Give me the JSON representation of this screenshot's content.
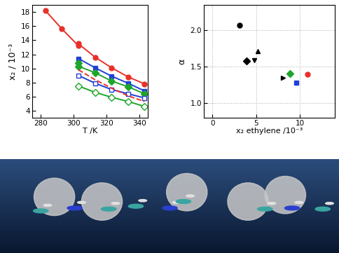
{
  "chart_data": [
    {
      "type": "line",
      "x_label": "T /K",
      "y_label": "x₂ / 10⁻³",
      "xlim": [
        275,
        345
      ],
      "xticks": [
        280,
        300,
        320,
        340
      ],
      "ylim": [
        3,
        19
      ],
      "yticks": [
        4,
        6,
        8,
        10,
        12,
        14,
        16,
        18
      ],
      "grid": false,
      "series": [
        {
          "color": "#e8312a",
          "marker": "circle",
          "line_style": "solid",
          "x": [
            283,
            293,
            303,
            303,
            313,
            323,
            333,
            343
          ],
          "values": [
            18.2,
            15.6,
            13.2,
            13.5,
            11.6,
            10.1,
            8.8,
            7.8
          ]
        },
        {
          "color": "#1f3fd6",
          "marker": "square",
          "line_style": "solid",
          "x": [
            303,
            313,
            323,
            333,
            343
          ],
          "values": [
            11.4,
            10.1,
            8.9,
            7.9,
            6.8
          ]
        },
        {
          "color": "#1fa52a",
          "marker": "diamond",
          "line_style": "solid",
          "x": [
            303,
            303,
            313,
            323,
            333,
            343
          ],
          "values": [
            10.8,
            10.3,
            9.4,
            8.2,
            7.4,
            6.4
          ]
        },
        {
          "color": "#1f3fd6",
          "marker": "open square",
          "line_style": "solid",
          "x": [
            303,
            313,
            323,
            333,
            343
          ],
          "values": [
            9.0,
            7.9,
            7.0,
            6.4,
            5.8
          ]
        },
        {
          "color": "#e8312a",
          "marker": "none",
          "line_style": "dashed",
          "x": [
            303,
            313,
            323,
            333,
            343
          ],
          "values": [
            9.8,
            8.4,
            7.2,
            6.1,
            5.3
          ]
        },
        {
          "color": "#1fa52a",
          "marker": "open diamond",
          "line_style": "solid",
          "x": [
            303,
            313,
            323,
            333,
            343
          ],
          "values": [
            7.5,
            6.6,
            5.9,
            5.3,
            4.6
          ]
        }
      ]
    },
    {
      "type": "scatter",
      "x_label": "x₂ ethylene /10⁻³",
      "y_label": "α",
      "xlim": [
        -1,
        14
      ],
      "xticks": [
        0,
        5,
        10
      ],
      "ylim": [
        0.8,
        2.35
      ],
      "yticks": [
        1.0,
        1.5,
        2.0
      ],
      "grid": true,
      "series": [
        {
          "color": "#000000",
          "marker": "circle",
          "x": [
            3.1
          ],
          "values": [
            2.07
          ]
        },
        {
          "color": "#000000",
          "marker": "diamond",
          "x": [
            3.9
          ],
          "values": [
            1.58
          ]
        },
        {
          "color": "#000000",
          "marker": "triangle-down",
          "x": [
            4.8
          ],
          "values": [
            1.59
          ]
        },
        {
          "color": "#000000",
          "marker": "triangle-up",
          "x": [
            5.2
          ],
          "values": [
            1.72
          ]
        },
        {
          "color": "#000000",
          "marker": "triangle-right",
          "x": [
            8.1
          ],
          "values": [
            1.35
          ]
        },
        {
          "color": "#1fa52a",
          "marker": "diamond",
          "x": [
            8.9
          ],
          "values": [
            1.41
          ]
        },
        {
          "color": "#1f3fd6",
          "marker": "square",
          "x": [
            9.6
          ],
          "values": [
            1.28
          ]
        },
        {
          "color": "#e8312a",
          "marker": "circle",
          "x": [
            10.9
          ],
          "values": [
            1.4
          ]
        }
      ]
    }
  ]
}
